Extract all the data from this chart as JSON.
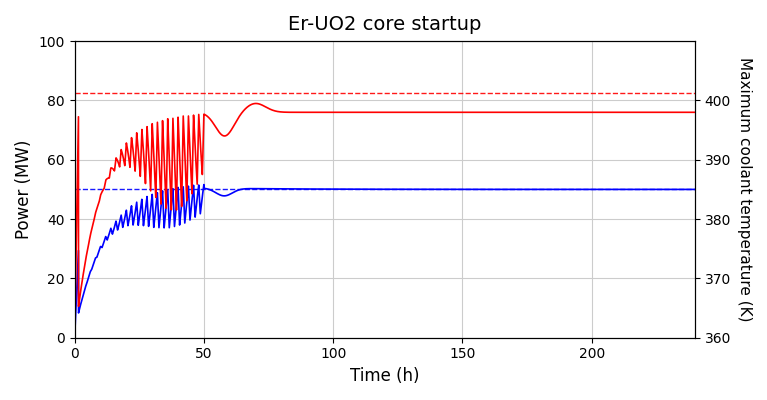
{
  "title": "Er-UO2 core startup",
  "xlabel": "Time (h)",
  "ylabel_left": "Power (MW)",
  "ylabel_right": "Maximum coolant temperature (K)",
  "xlim": [
    0,
    240
  ],
  "ylim_left": [
    0,
    100
  ],
  "ylim_right": [
    360,
    410
  ],
  "xticks": [
    0,
    50,
    100,
    150,
    200
  ],
  "yticks_left": [
    0,
    20,
    40,
    60,
    80,
    100
  ],
  "yticks_right": [
    360,
    370,
    380,
    390,
    400
  ],
  "power_setpoint": 50.0,
  "temp_setpoint": 82.5,
  "dashed_blue_y": 50.0,
  "dashed_red_y": 82.5,
  "red_color": "#ff0000",
  "blue_color": "#0000ff",
  "background_color": "#ffffff",
  "grid_color": "#cccccc",
  "osc_period": 2.0,
  "osc_count": 22,
  "osc_end_t": 50.0,
  "settle_dip_t": 57.0,
  "settle_final_t": 80.0
}
